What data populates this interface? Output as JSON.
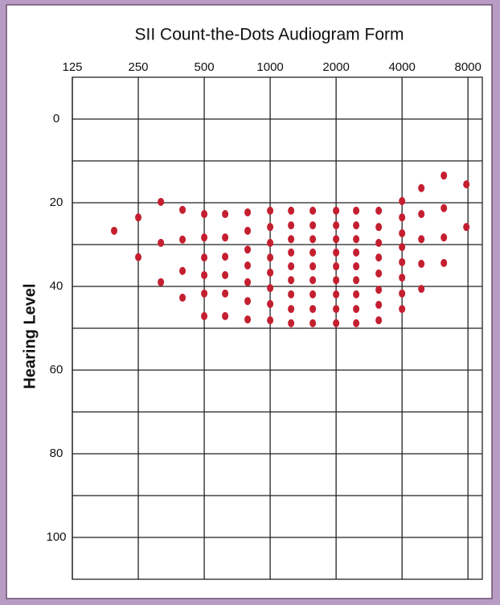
{
  "chart_data": {
    "type": "scatter",
    "title": "SII Count-the-Dots Audiogram Form",
    "y_label": "Hearing Level",
    "log_x": true,
    "y_inverted": true,
    "grid": true,
    "color": "#c41f30",
    "xlim": [
      125,
      9300
    ],
    "xticks": [
      125,
      250,
      500,
      1000,
      2000,
      4000,
      8000
    ],
    "ylim": [
      -10,
      110
    ],
    "yticks": [
      0,
      20,
      40,
      60,
      80,
      100
    ],
    "ygrid": [
      0,
      10,
      20,
      30,
      40,
      50,
      60,
      70,
      80,
      90,
      100
    ],
    "x": [
      194,
      250,
      250,
      317,
      317,
      317,
      398,
      398,
      398,
      398,
      500,
      500,
      500,
      500,
      500,
      500,
      623,
      623,
      623,
      623,
      623,
      623,
      789,
      789,
      789,
      789,
      789,
      789,
      789,
      1000,
      1000,
      1000,
      1000,
      1000,
      1000,
      1000,
      1000,
      1246,
      1246,
      1246,
      1246,
      1246,
      1246,
      1246,
      1246,
      1246,
      1565,
      1565,
      1565,
      1565,
      1565,
      1565,
      1565,
      1565,
      1565,
      2000,
      2000,
      2000,
      2000,
      2000,
      2000,
      2000,
      2000,
      2000,
      2470,
      2470,
      2470,
      2470,
      2470,
      2470,
      2470,
      2470,
      2470,
      3130,
      3130,
      3130,
      3130,
      3130,
      3130,
      3130,
      3130,
      4000,
      4000,
      4000,
      4000,
      4000,
      4000,
      4000,
      4000,
      4900,
      4900,
      4900,
      4900,
      4900,
      6209,
      6209,
      6209,
      6209,
      7866,
      7866
    ],
    "values": [
      26.7,
      23.5,
      33,
      19.8,
      29.6,
      39,
      21.7,
      28.8,
      36.3,
      42.7,
      22.7,
      28.3,
      33.1,
      37.3,
      41.7,
      47.1,
      22.7,
      28.3,
      32.9,
      37.3,
      41.7,
      47.1,
      22.3,
      26.7,
      31.2,
      35,
      39,
      43.5,
      47.9,
      21.9,
      25.8,
      29.6,
      33.1,
      36.7,
      40.4,
      44.2,
      48.1,
      21.9,
      25.4,
      28.7,
      31.9,
      35.2,
      38.5,
      41.9,
      45.4,
      48.8,
      21.9,
      25.4,
      28.7,
      31.9,
      35.2,
      38.5,
      41.9,
      45.4,
      48.8,
      21.9,
      25.4,
      28.7,
      31.9,
      35.2,
      38.5,
      41.9,
      45.4,
      48.8,
      21.9,
      25.4,
      28.7,
      31.9,
      35.2,
      38.5,
      41.9,
      45.4,
      48.8,
      21.9,
      25.8,
      29.6,
      33.1,
      36.9,
      40.8,
      44.4,
      48.1,
      19.6,
      23.5,
      27.3,
      30.6,
      34.2,
      37.9,
      41.7,
      45.4,
      16.5,
      22.7,
      28.7,
      34.6,
      40.6,
      13.5,
      21.3,
      28.3,
      34.4,
      15.6,
      25.8
    ]
  }
}
